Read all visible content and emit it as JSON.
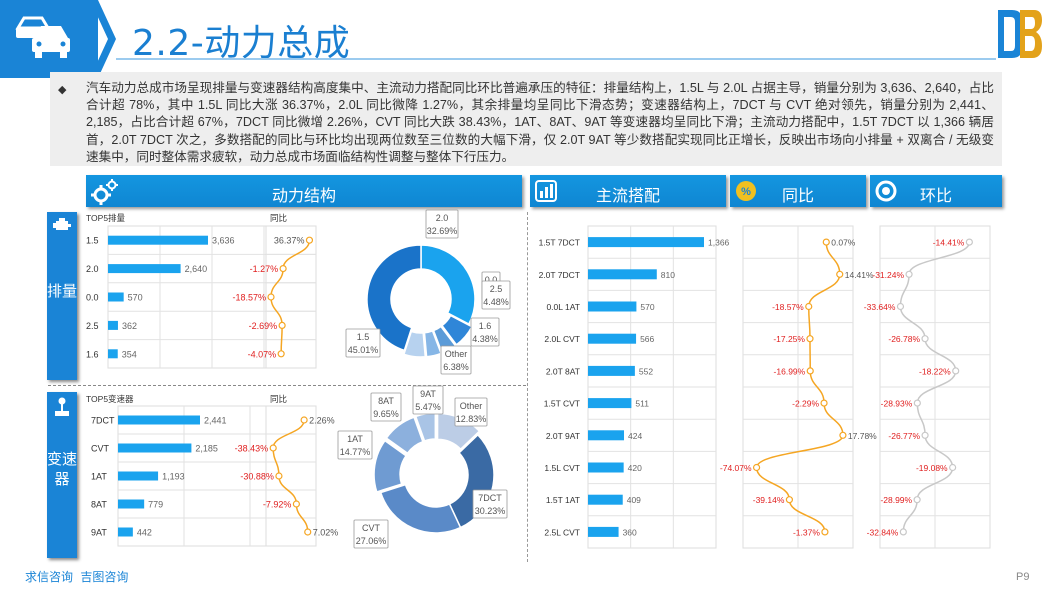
{
  "header": {
    "title": "2.2-动力总成",
    "page": "P9",
    "footer_links": [
      "求信咨询",
      "吉图咨询"
    ]
  },
  "summary": {
    "bullet": "◆",
    "text": "汽车动力总成市场呈现排量与变速器结构高度集中、主流动力搭配同比环比普遍承压的特征：排量结构上，1.5L 与 2.0L 占据主导，销量分别为 3,636、2,640，占比合计超 78%，其中 1.5L 同比大涨 36.37%，2.0L 同比微降 1.27%，其余排量均呈同比下滑态势；变速器结构上，7DCT 与 CVT 绝对领先，销量分别为 2,441、2,185，占比合计超 67%，7DCT 同比微增 2.26%，CVT 同比大跌 38.43%，1AT、8AT、9AT 等变速器均呈同比下滑；主流动力搭配中，1.5T 7DCT 以 1,366 辆居首，2.0T 7DCT 次之，多数搭配的同比与环比均出现两位数至三位数的大幅下滑，仅 2.0T 9AT 等少数搭配实现同比正增长，反映出市场向小排量 + 双离合 / 无级变速集中，同时整体需求疲软，动力总成市场面临结构性调整与整体下行压力。"
  },
  "sections": {
    "power_structure": "动力结构",
    "main_combo": "主流搭配",
    "yoy": "同比",
    "mom": "环比",
    "displacement_side": "排量",
    "transmission_side": "变速器"
  },
  "icons": {
    "header": "car-icon",
    "logo": "brand-logo",
    "power": "gears-icon",
    "combo": "bar-chart-icon",
    "yoy": "percent-icon",
    "mom": "circle-icon",
    "engine": "engine-icon",
    "gearbox": "gear-shift-icon"
  },
  "colors": {
    "accent": "#1a84d6",
    "bar": "#1aa3ee",
    "line": "#f5a623",
    "line_mom": "#c8c8c8",
    "negative": "#e02020"
  },
  "chart_data": [
    {
      "id": "displacement_bar",
      "type": "bar",
      "title": "TOP5排量",
      "categories": [
        "1.5",
        "2.0",
        "0.0",
        "2.5",
        "1.6"
      ],
      "values": [
        3636,
        2640,
        570,
        362,
        354
      ],
      "value_labels": [
        "3,636",
        "2,640",
        "570",
        "362",
        "354"
      ]
    },
    {
      "id": "displacement_yoy",
      "type": "line",
      "title": "同比",
      "categories": [
        "1.5",
        "2.0",
        "0.0",
        "2.5",
        "1.6"
      ],
      "values": [
        36.37,
        -1.27,
        -18.57,
        -2.69,
        -4.07
      ],
      "value_labels": [
        "36.37%",
        "-1.27%",
        "-18.57%",
        "-2.69%",
        "-4.07%"
      ]
    },
    {
      "id": "displacement_pie",
      "type": "pie",
      "labels": [
        "2.0",
        "0.0",
        "2.5",
        "1.6",
        "Other",
        "1.5"
      ],
      "values": [
        32.69,
        7.06,
        4.48,
        4.38,
        6.38,
        45.01
      ],
      "value_labels": [
        "32.69%",
        "",
        "4.48%",
        "4.38%",
        "6.38%",
        "45.01%"
      ]
    },
    {
      "id": "transmission_bar",
      "type": "bar",
      "title": "TOP5变速器",
      "categories": [
        "7DCT",
        "CVT",
        "1AT",
        "8AT",
        "9AT"
      ],
      "values": [
        2441,
        2185,
        1193,
        779,
        442
      ],
      "value_labels": [
        "2,441",
        "2,185",
        "1,193",
        "779",
        "442"
      ]
    },
    {
      "id": "transmission_yoy",
      "type": "line",
      "title": "同比",
      "categories": [
        "7DCT",
        "CVT",
        "1AT",
        "8AT",
        "9AT"
      ],
      "values": [
        2.26,
        -38.43,
        -30.88,
        -7.92,
        7.02
      ],
      "value_labels": [
        "2.26%",
        "-38.43%",
        "-30.88%",
        "-7.92%",
        "7.02%"
      ]
    },
    {
      "id": "transmission_pie",
      "type": "pie",
      "labels": [
        "Other",
        "7DCT",
        "CVT",
        "1AT",
        "8AT",
        "9AT"
      ],
      "values": [
        12.83,
        30.23,
        27.06,
        14.77,
        9.65,
        5.47
      ],
      "value_labels": [
        "12.83%",
        "30.23%",
        "27.06%",
        "14.77%",
        "9.65%",
        "5.47%"
      ]
    },
    {
      "id": "combo_bar",
      "type": "bar",
      "categories": [
        "1.5T 7DCT",
        "2.0T 7DCT",
        "0.0L 1AT",
        "2.0L CVT",
        "2.0T 8AT",
        "1.5T CVT",
        "2.0T 9AT",
        "1.5L CVT",
        "1.5T 1AT",
        "2.5L CVT"
      ],
      "values": [
        1366,
        810,
        570,
        566,
        552,
        511,
        424,
        420,
        409,
        360
      ],
      "value_labels": [
        "1,366",
        "810",
        "570",
        "566",
        "552",
        "511",
        "424",
        "420",
        "409",
        "360"
      ]
    },
    {
      "id": "combo_yoy",
      "type": "line",
      "categories": [
        "1.5T 7DCT",
        "2.0T 7DCT",
        "0.0L 1AT",
        "2.0L CVT",
        "2.0T 8AT",
        "1.5T CVT",
        "2.0T 9AT",
        "1.5L CVT",
        "1.5T 1AT",
        "2.5L CVT"
      ],
      "values": [
        0.07,
        14.41,
        -18.57,
        -17.25,
        -16.99,
        -2.29,
        17.78,
        -74.07,
        -39.14,
        -1.37
      ],
      "value_labels": [
        "0.07%",
        "14.41%",
        "-18.57%",
        "-17.25%",
        "-16.99%",
        "-2.29%",
        "17.78%",
        "-74.07%",
        "-39.14%",
        "-1.37%"
      ]
    },
    {
      "id": "combo_mom",
      "type": "line",
      "categories": [
        "1.5T 7DCT",
        "2.0T 7DCT",
        "0.0L 1AT",
        "2.0L CVT",
        "2.0T 8AT",
        "1.5T CVT",
        "2.0T 9AT",
        "1.5L CVT",
        "1.5T 1AT",
        "2.5L CVT"
      ],
      "values": [
        -14.41,
        -31.24,
        -33.64,
        -26.78,
        -18.22,
        -28.93,
        -26.77,
        -19.08,
        -28.99,
        -32.84
      ],
      "value_labels": [
        "-14.41%",
        "-31.24%",
        "-33.64%",
        "-26.78%",
        "-18.22%",
        "-28.93%",
        "-26.77%",
        "-19.08%",
        "-28.99%",
        "-32.84%"
      ]
    }
  ]
}
